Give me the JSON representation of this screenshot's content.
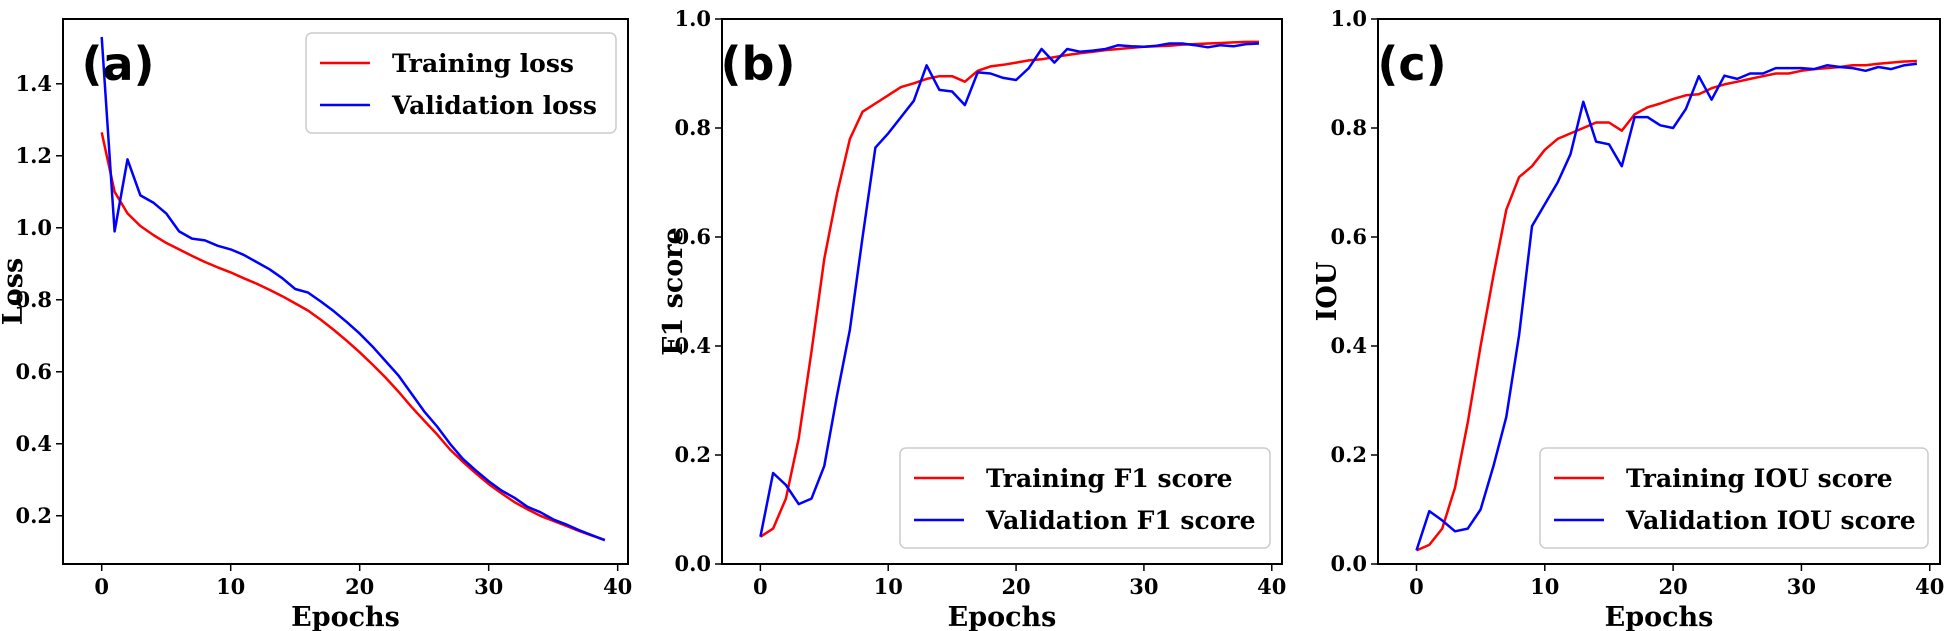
{
  "chart_data": [
    {
      "type": "line",
      "panel_label": "(a)",
      "xlabel": "Epochs",
      "ylabel": "Loss",
      "xlim": [
        -3,
        40.8
      ],
      "ylim": [
        0.066,
        1.58
      ],
      "xticks": [
        0,
        10,
        20,
        30,
        40
      ],
      "yticks": [
        0.2,
        0.4,
        0.6,
        0.8,
        1.0,
        1.2,
        1.4
      ],
      "ytick_labels": [
        "0.2",
        "0.4",
        "0.6",
        "0.8",
        "1.0",
        "1.2",
        "1.4"
      ],
      "legend_position": "upper right",
      "series": [
        {
          "name": "Training loss",
          "color": "#ff0000",
          "x": [
            0,
            1,
            2,
            3,
            4,
            5,
            6,
            7,
            8,
            9,
            10,
            11,
            12,
            13,
            14,
            15,
            16,
            17,
            18,
            19,
            20,
            21,
            22,
            23,
            24,
            25,
            26,
            27,
            28,
            29,
            30,
            31,
            32,
            33,
            34,
            35,
            36,
            37,
            38,
            39
          ],
          "y": [
            1.265,
            1.1,
            1.04,
            1.005,
            0.98,
            0.958,
            0.94,
            0.922,
            0.905,
            0.89,
            0.876,
            0.86,
            0.845,
            0.828,
            0.81,
            0.79,
            0.77,
            0.744,
            0.716,
            0.686,
            0.654,
            0.62,
            0.584,
            0.545,
            0.503,
            0.464,
            0.426,
            0.384,
            0.35,
            0.318,
            0.288,
            0.262,
            0.238,
            0.218,
            0.2,
            0.186,
            0.172,
            0.158,
            0.145,
            0.133
          ]
        },
        {
          "name": "Validation loss",
          "color": "#0000ff",
          "x": [
            0,
            1,
            2,
            3,
            4,
            5,
            6,
            7,
            8,
            9,
            10,
            11,
            12,
            13,
            14,
            15,
            16,
            17,
            18,
            19,
            20,
            21,
            22,
            23,
            24,
            25,
            26,
            27,
            28,
            29,
            30,
            31,
            32,
            33,
            34,
            35,
            36,
            37,
            38,
            39
          ],
          "y": [
            1.53,
            0.99,
            1.19,
            1.09,
            1.07,
            1.04,
            0.99,
            0.97,
            0.965,
            0.95,
            0.94,
            0.925,
            0.905,
            0.885,
            0.86,
            0.83,
            0.82,
            0.795,
            0.768,
            0.738,
            0.706,
            0.67,
            0.63,
            0.59,
            0.54,
            0.49,
            0.448,
            0.4,
            0.358,
            0.326,
            0.296,
            0.27,
            0.25,
            0.225,
            0.21,
            0.19,
            0.176,
            0.16,
            0.146,
            0.132
          ]
        }
      ]
    },
    {
      "type": "line",
      "panel_label": "(b)",
      "xlabel": "Epochs",
      "ylabel": "F1 score",
      "xlim": [
        -3,
        40.8
      ],
      "ylim": [
        0.0,
        1.0
      ],
      "xticks": [
        0,
        10,
        20,
        30,
        40
      ],
      "yticks": [
        0.0,
        0.2,
        0.4,
        0.6,
        0.8,
        1.0
      ],
      "ytick_labels": [
        "0.0",
        "0.2",
        "0.4",
        "0.6",
        "0.8",
        "1.0"
      ],
      "legend_position": "lower right",
      "series": [
        {
          "name": "Training F1 score",
          "color": "#ff0000",
          "x": [
            0,
            1,
            2,
            3,
            4,
            5,
            6,
            7,
            8,
            9,
            10,
            11,
            12,
            13,
            14,
            15,
            16,
            17,
            18,
            19,
            20,
            21,
            22,
            23,
            24,
            25,
            26,
            27,
            28,
            29,
            30,
            31,
            32,
            33,
            34,
            35,
            36,
            37,
            38,
            39
          ],
          "y": [
            0.05,
            0.065,
            0.12,
            0.23,
            0.39,
            0.56,
            0.68,
            0.78,
            0.83,
            0.845,
            0.86,
            0.875,
            0.882,
            0.89,
            0.895,
            0.895,
            0.885,
            0.905,
            0.913,
            0.916,
            0.92,
            0.924,
            0.926,
            0.93,
            0.934,
            0.937,
            0.94,
            0.943,
            0.945,
            0.947,
            0.949,
            0.95,
            0.951,
            0.953,
            0.954,
            0.955,
            0.956,
            0.957,
            0.958,
            0.958
          ]
        },
        {
          "name": "Validation F1 score",
          "color": "#0000ff",
          "x": [
            0,
            1,
            2,
            3,
            4,
            5,
            6,
            7,
            8,
            9,
            10,
            11,
            12,
            13,
            14,
            15,
            16,
            17,
            18,
            19,
            20,
            21,
            22,
            23,
            24,
            25,
            26,
            27,
            28,
            29,
            30,
            31,
            32,
            33,
            34,
            35,
            36,
            37,
            38,
            39
          ],
          "y": [
            0.05,
            0.167,
            0.145,
            0.11,
            0.12,
            0.18,
            0.31,
            0.43,
            0.6,
            0.764,
            0.79,
            0.82,
            0.85,
            0.915,
            0.87,
            0.867,
            0.842,
            0.902,
            0.9,
            0.892,
            0.888,
            0.91,
            0.945,
            0.92,
            0.945,
            0.94,
            0.942,
            0.945,
            0.952,
            0.95,
            0.949,
            0.951,
            0.955,
            0.955,
            0.952,
            0.948,
            0.952,
            0.95,
            0.954,
            0.955
          ]
        }
      ]
    },
    {
      "type": "line",
      "panel_label": "(c)",
      "xlabel": "Epochs",
      "ylabel": "IOU",
      "xlim": [
        -3,
        40.8
      ],
      "ylim": [
        0.0,
        1.0
      ],
      "xticks": [
        0,
        10,
        20,
        30,
        40
      ],
      "yticks": [
        0.0,
        0.2,
        0.4,
        0.6,
        0.8,
        1.0
      ],
      "ytick_labels": [
        "0.0",
        "0.2",
        "0.4",
        "0.6",
        "0.8",
        "1.0"
      ],
      "legend_position": "lower right",
      "series": [
        {
          "name": "Training IOU score",
          "color": "#ff0000",
          "x": [
            0,
            1,
            2,
            3,
            4,
            5,
            6,
            7,
            8,
            9,
            10,
            11,
            12,
            13,
            14,
            15,
            16,
            17,
            18,
            19,
            20,
            21,
            22,
            23,
            24,
            25,
            26,
            27,
            28,
            29,
            30,
            31,
            32,
            33,
            34,
            35,
            36,
            37,
            38,
            39
          ],
          "y": [
            0.025,
            0.035,
            0.065,
            0.14,
            0.26,
            0.4,
            0.53,
            0.65,
            0.71,
            0.73,
            0.76,
            0.78,
            0.79,
            0.8,
            0.81,
            0.81,
            0.795,
            0.825,
            0.838,
            0.845,
            0.853,
            0.86,
            0.862,
            0.873,
            0.88,
            0.885,
            0.89,
            0.895,
            0.9,
            0.9,
            0.905,
            0.908,
            0.91,
            0.912,
            0.915,
            0.915,
            0.918,
            0.92,
            0.922,
            0.923
          ]
        },
        {
          "name": "Validation IOU score",
          "color": "#0000ff",
          "x": [
            0,
            1,
            2,
            3,
            4,
            5,
            6,
            7,
            8,
            9,
            10,
            11,
            12,
            13,
            14,
            15,
            16,
            17,
            18,
            19,
            20,
            21,
            22,
            23,
            24,
            25,
            26,
            27,
            28,
            29,
            30,
            31,
            32,
            33,
            34,
            35,
            36,
            37,
            38,
            39
          ],
          "y": [
            0.025,
            0.097,
            0.08,
            0.06,
            0.065,
            0.1,
            0.18,
            0.27,
            0.42,
            0.62,
            0.66,
            0.7,
            0.752,
            0.848,
            0.775,
            0.77,
            0.73,
            0.82,
            0.82,
            0.805,
            0.8,
            0.835,
            0.895,
            0.852,
            0.896,
            0.89,
            0.9,
            0.9,
            0.91,
            0.91,
            0.91,
            0.908,
            0.915,
            0.912,
            0.91,
            0.905,
            0.912,
            0.908,
            0.915,
            0.918
          ]
        }
      ]
    }
  ]
}
